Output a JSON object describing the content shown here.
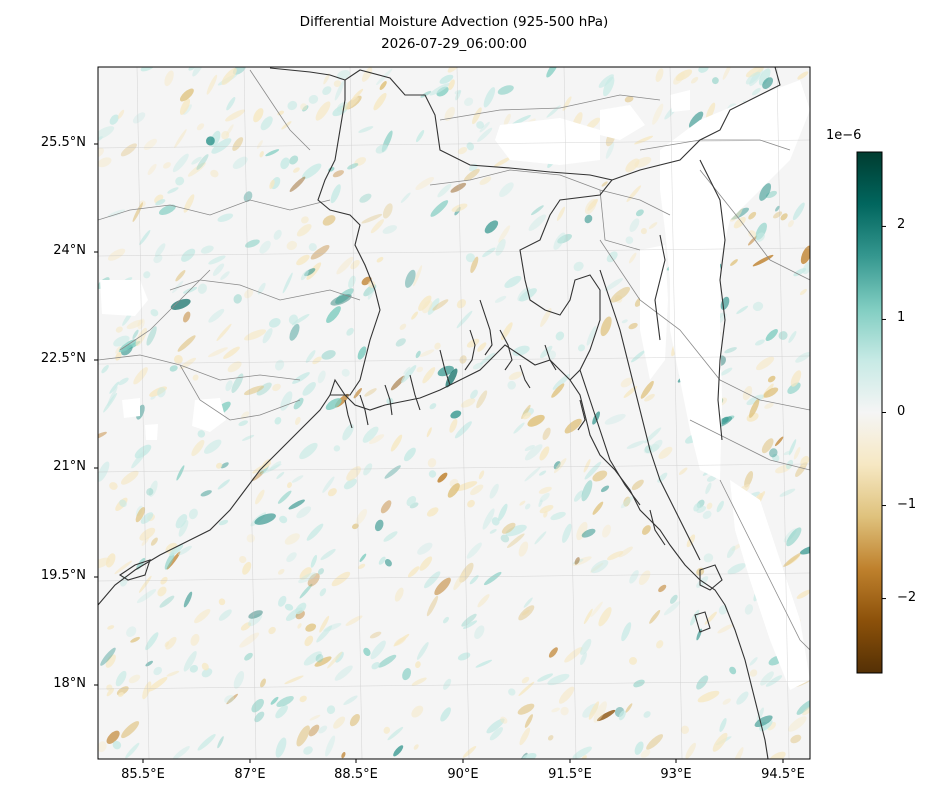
{
  "title": {
    "line1": "Differential Moisture Advection (925-500 hPa)",
    "line2": "2026-07-29_06:00:00"
  },
  "lat_ticks": [
    "25.5°N",
    "24°N",
    "22.5°N",
    "21°N",
    "19.5°N",
    "18°N"
  ],
  "lon_ticks": [
    "85.5°E",
    "87°E",
    "88.5°E",
    "90°E",
    "91.5°E",
    "93°E",
    "94.5°E"
  ],
  "colorbar": {
    "exponent_label": "1e−6",
    "tick_labels": [
      "2",
      "1",
      "0",
      "−1",
      "−2"
    ],
    "tick_values": [
      2,
      1,
      0,
      -1,
      -2
    ],
    "range": [
      -2.8,
      2.8
    ],
    "colormap": "BrBG",
    "colors": [
      "#543005",
      "#8c510a",
      "#bf812d",
      "#dfc27d",
      "#f6e8c3",
      "#f5f5f5",
      "#c7eae5",
      "#80cdc1",
      "#35978f",
      "#01665e",
      "#003c30"
    ]
  },
  "map": {
    "extent_lon": [
      84.7,
      94.9
    ],
    "extent_lat": [
      17.1,
      26.5
    ],
    "background_color": "#f5f5f5",
    "coastline_color": "#333333",
    "border_color": "#999999",
    "gridlines": true
  }
}
